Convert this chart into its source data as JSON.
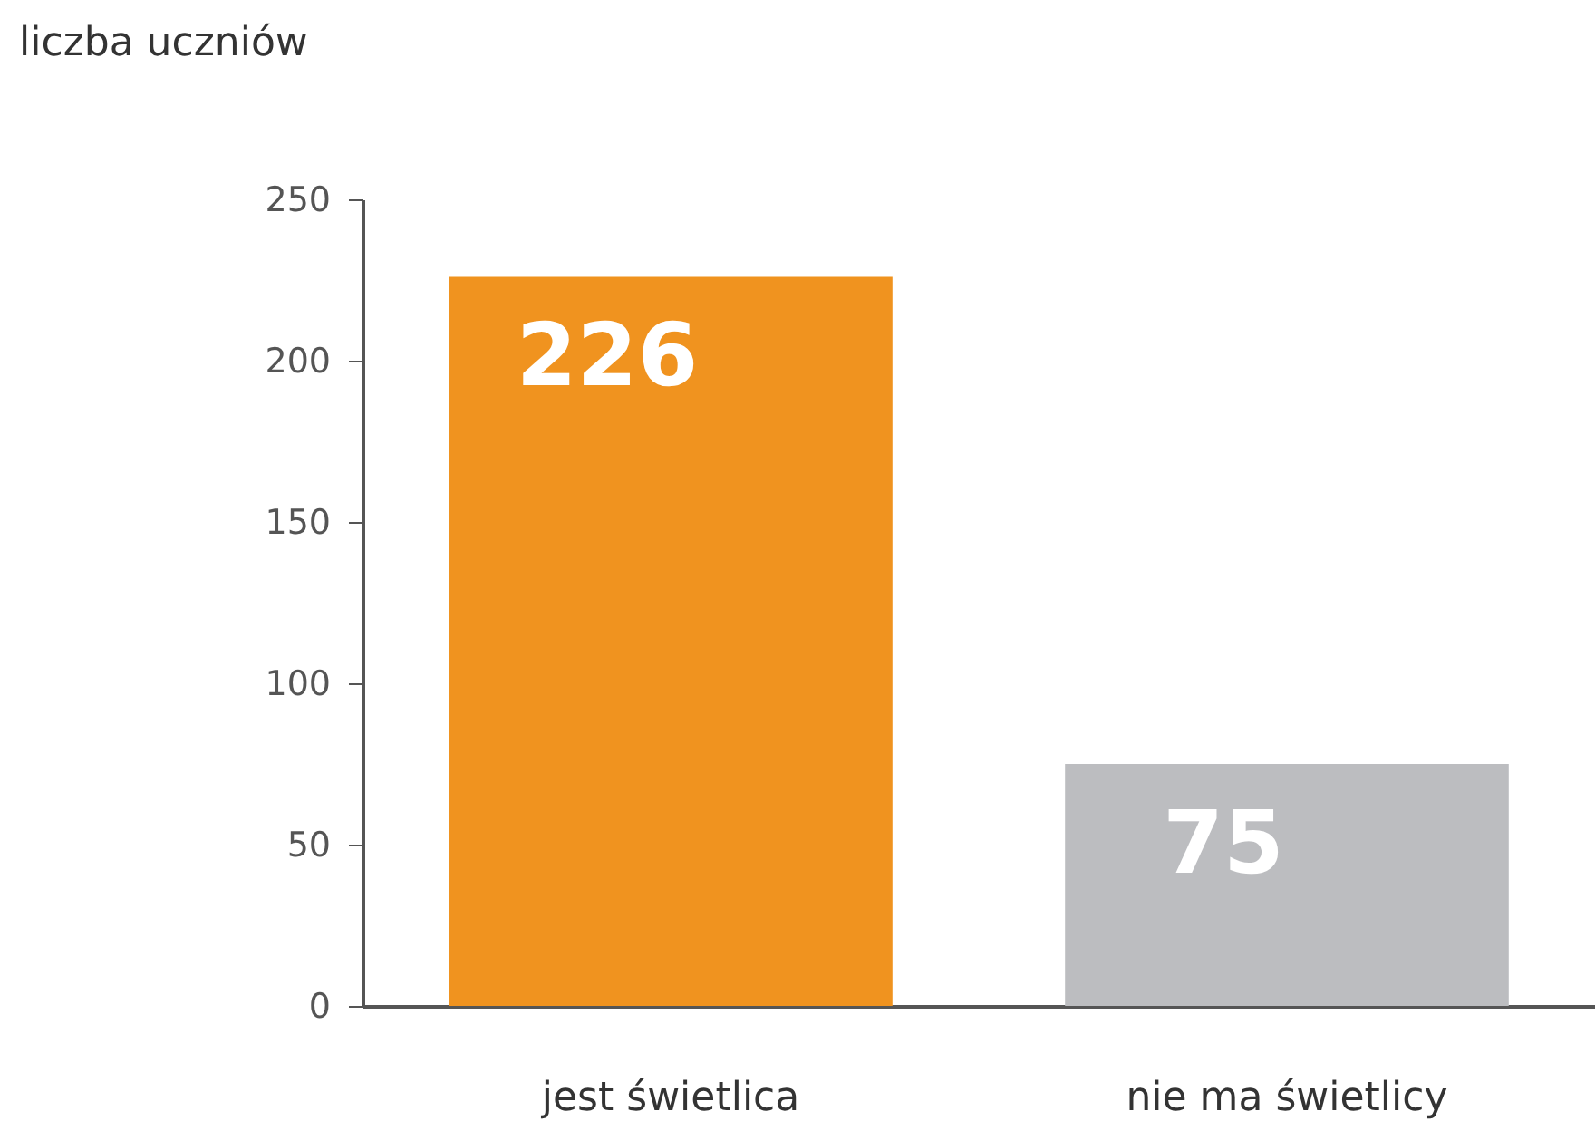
{
  "chart_data": {
    "type": "bar",
    "ylabel": "liczba uczniów",
    "categories": [
      "jest świetlica",
      "nie ma świetlicy"
    ],
    "values": [
      226,
      75
    ],
    "colors": [
      "#f0931f",
      "#bcbdc0"
    ],
    "ylim": [
      0,
      250
    ],
    "yticks": [
      0,
      50,
      100,
      150,
      200,
      250
    ],
    "data_labels": true,
    "grid": false
  }
}
